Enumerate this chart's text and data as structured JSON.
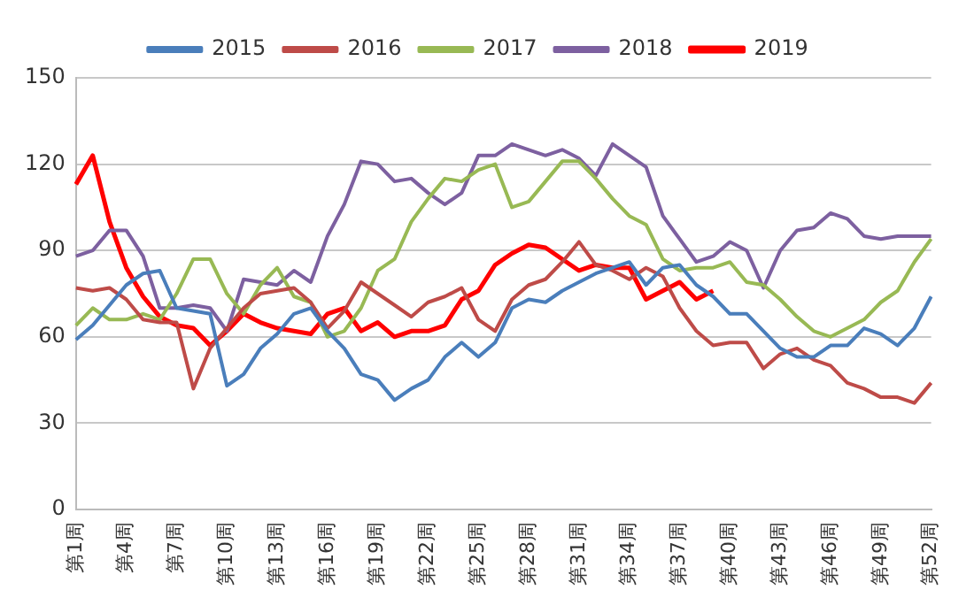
{
  "chart_data": {
    "type": "line",
    "categories": [
      "第1周",
      null,
      null,
      "第4周",
      null,
      null,
      "第7周",
      null,
      null,
      "第10周",
      null,
      null,
      "第13周",
      null,
      null,
      "第16周",
      null,
      null,
      "第19周",
      null,
      null,
      "第22周",
      null,
      null,
      "第25周",
      null,
      null,
      "第28周",
      null,
      null,
      "第31周",
      null,
      null,
      "第34周",
      null,
      null,
      "第37周",
      null,
      null,
      "第40周",
      null,
      null,
      "第43周",
      null,
      null,
      "第46周",
      null,
      null,
      "第49周",
      null,
      null,
      "第52周"
    ],
    "series": [
      {
        "name": "2015",
        "color": "#4a7ebb",
        "values": [
          59,
          64,
          71,
          78,
          82,
          83,
          70,
          69,
          68,
          43,
          47,
          56,
          61,
          68,
          70,
          62,
          56,
          47,
          45,
          38,
          42,
          45,
          53,
          58,
          53,
          58,
          70,
          73,
          72,
          76,
          79,
          82,
          84,
          86,
          78,
          84,
          85,
          78,
          74,
          68,
          68,
          62,
          56,
          53,
          53,
          57,
          57,
          63,
          61,
          57,
          63,
          74
        ]
      },
      {
        "name": "2016",
        "color": "#be4b48",
        "values": [
          77,
          76,
          77,
          73,
          66,
          65,
          65,
          42,
          56,
          63,
          70,
          75,
          76,
          77,
          72,
          63,
          69,
          79,
          75,
          71,
          67,
          72,
          74,
          77,
          66,
          62,
          73,
          78,
          80,
          86,
          93,
          85,
          83,
          80,
          84,
          81,
          70,
          62,
          57,
          58,
          58,
          49,
          54,
          56,
          52,
          50,
          44,
          42,
          39,
          39,
          37,
          44
        ]
      },
      {
        "name": "2017",
        "color": "#98b954",
        "values": [
          64,
          70,
          66,
          66,
          68,
          66,
          75,
          87,
          87,
          75,
          68,
          78,
          84,
          74,
          72,
          60,
          62,
          70,
          83,
          87,
          100,
          108,
          115,
          114,
          118,
          120,
          105,
          107,
          114,
          121,
          121,
          115,
          108,
          102,
          99,
          87,
          83,
          84,
          84,
          86,
          79,
          78,
          73,
          67,
          62,
          60,
          63,
          66,
          72,
          76,
          86,
          94
        ]
      },
      {
        "name": "2018",
        "color": "#7d60a0",
        "values": [
          88,
          90,
          97,
          97,
          88,
          70,
          70,
          71,
          70,
          62,
          80,
          79,
          78,
          83,
          79,
          95,
          106,
          121,
          120,
          114,
          115,
          110,
          106,
          110,
          123,
          123,
          127,
          125,
          123,
          125,
          122,
          116,
          127,
          123,
          119,
          102,
          94,
          86,
          88,
          93,
          90,
          77,
          90,
          97,
          98,
          103,
          101,
          95,
          94,
          95,
          95,
          95
        ]
      },
      {
        "name": "2019",
        "color": "#ff0000",
        "values": [
          113,
          123,
          100,
          84,
          74,
          67,
          64,
          63,
          57,
          62,
          68,
          65,
          63,
          62,
          61,
          68,
          70,
          62,
          65,
          60,
          62,
          62,
          64,
          73,
          76,
          85,
          89,
          92,
          91,
          87,
          83,
          85,
          84,
          84,
          73,
          76,
          79,
          73,
          76,
          null,
          null,
          null,
          null,
          null,
          null,
          null,
          null,
          null,
          null,
          null,
          null,
          null
        ]
      }
    ],
    "ylim": [
      0,
      150
    ],
    "yticks": [
      0,
      30,
      60,
      90,
      120,
      150
    ],
    "grid": "y",
    "legend": "top"
  }
}
